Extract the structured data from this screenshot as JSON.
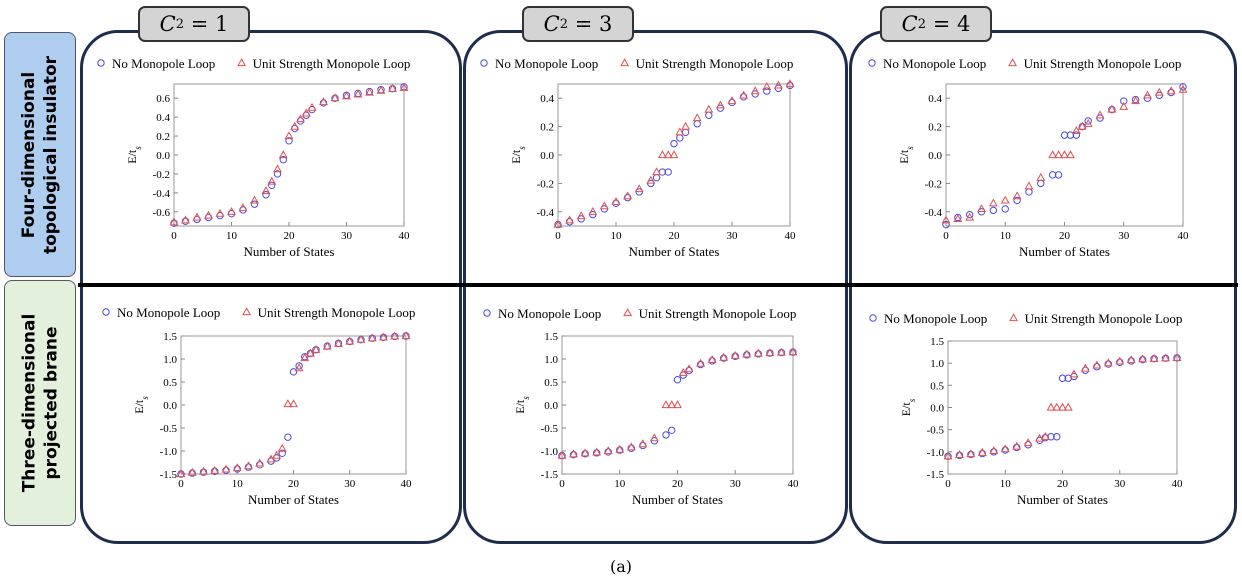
{
  "row_labels": {
    "top": "Four-dimensional\ntopological insulator",
    "bottom": "Three-dimensional\nprojected brane"
  },
  "column_headers": [
    {
      "symbol": "C",
      "subscript": "2",
      "value": "= 1"
    },
    {
      "symbol": "C",
      "subscript": "2",
      "value": "= 3"
    },
    {
      "symbol": "C",
      "subscript": "2",
      "value": "= 4"
    }
  ],
  "caption": "(a)",
  "colors": {
    "series_a": "#4a4ae0",
    "series_b": "#e05050",
    "panel_border": "#1f2d4d",
    "row_top_bg": "#aecdef",
    "row_bottom_bg": "#e3f1dc",
    "header_bg": "#d4d4d4"
  },
  "chart_data": [
    {
      "type": "scatter",
      "xlabel": "Number of States",
      "ylabel": "E/t_s",
      "xlim": [
        0,
        40
      ],
      "ylim": [
        -0.75,
        0.75
      ],
      "xticks": [
        "0",
        "10",
        "20",
        "30",
        "40"
      ],
      "yticks": [
        "-0.6",
        "-0.4",
        "-0.2",
        "0.0",
        "0.2",
        "0.4",
        "0.6"
      ],
      "legend_position": "top",
      "series": [
        {
          "name": "No Monopole Loop",
          "marker": "circle",
          "x": [
            0,
            2,
            4,
            6,
            8,
            10,
            12,
            14,
            16,
            17,
            18,
            19,
            20,
            21,
            22,
            23,
            24,
            26,
            28,
            30,
            32,
            34,
            36,
            38,
            40
          ],
          "values": [
            -0.72,
            -0.7,
            -0.68,
            -0.66,
            -0.64,
            -0.62,
            -0.58,
            -0.52,
            -0.42,
            -0.32,
            -0.2,
            -0.05,
            0.15,
            0.28,
            0.36,
            0.42,
            0.48,
            0.55,
            0.6,
            0.63,
            0.65,
            0.67,
            0.69,
            0.7,
            0.72
          ]
        },
        {
          "name": "Unit Strength Monopole Loop",
          "marker": "triangle",
          "x": [
            0,
            2,
            4,
            6,
            8,
            10,
            12,
            14,
            16,
            17,
            18,
            19,
            20,
            21,
            22,
            23,
            24,
            26,
            28,
            30,
            32,
            34,
            36,
            38,
            40
          ],
          "values": [
            -0.71,
            -0.69,
            -0.66,
            -0.64,
            -0.62,
            -0.6,
            -0.56,
            -0.48,
            -0.38,
            -0.28,
            -0.15,
            0.0,
            0.2,
            0.3,
            0.38,
            0.44,
            0.5,
            0.56,
            0.6,
            0.62,
            0.64,
            0.66,
            0.68,
            0.7,
            0.71
          ]
        }
      ]
    },
    {
      "type": "scatter",
      "xlabel": "Number of States",
      "ylabel": "E/t_s",
      "xlim": [
        0,
        40
      ],
      "ylim": [
        -0.5,
        0.5
      ],
      "xticks": [
        "0",
        "10",
        "20",
        "30",
        "40"
      ],
      "yticks": [
        "-0.4",
        "-0.2",
        "0.0",
        "0.2",
        "0.4"
      ],
      "legend_position": "top",
      "series": [
        {
          "name": "No Monopole Loop",
          "marker": "circle",
          "x": [
            0,
            2,
            4,
            6,
            8,
            10,
            12,
            14,
            16,
            17,
            18,
            19,
            20,
            21,
            22,
            24,
            26,
            28,
            30,
            32,
            34,
            36,
            38,
            40
          ],
          "values": [
            -0.49,
            -0.47,
            -0.45,
            -0.42,
            -0.38,
            -0.34,
            -0.3,
            -0.26,
            -0.2,
            -0.16,
            -0.12,
            -0.12,
            0.08,
            0.12,
            0.16,
            0.22,
            0.28,
            0.33,
            0.37,
            0.41,
            0.43,
            0.45,
            0.47,
            0.49
          ]
        },
        {
          "name": "Unit Strength Monopole Loop",
          "marker": "triangle",
          "x": [
            0,
            2,
            4,
            6,
            8,
            10,
            12,
            14,
            16,
            17,
            18,
            19,
            20,
            21,
            22,
            24,
            26,
            28,
            30,
            32,
            34,
            36,
            38,
            40
          ],
          "values": [
            -0.49,
            -0.46,
            -0.43,
            -0.4,
            -0.36,
            -0.33,
            -0.29,
            -0.24,
            -0.18,
            -0.12,
            0.0,
            0.0,
            0.0,
            0.16,
            0.2,
            0.26,
            0.32,
            0.35,
            0.38,
            0.42,
            0.45,
            0.48,
            0.49,
            0.5
          ]
        }
      ]
    },
    {
      "type": "scatter",
      "xlabel": "Number of States",
      "ylabel": "E/t_s",
      "xlim": [
        0,
        40
      ],
      "ylim": [
        -0.5,
        0.5
      ],
      "xticks": [
        "0",
        "10",
        "20",
        "30",
        "40"
      ],
      "yticks": [
        "-0.4",
        "-0.2",
        "0.0",
        "0.2",
        "0.4"
      ],
      "legend_position": "top",
      "series": [
        {
          "name": "No Monopole Loop",
          "marker": "circle",
          "x": [
            0,
            2,
            4,
            6,
            8,
            10,
            12,
            14,
            16,
            18,
            19,
            20,
            21,
            22,
            23,
            24,
            26,
            28,
            30,
            32,
            34,
            36,
            38,
            40
          ],
          "values": [
            -0.49,
            -0.44,
            -0.42,
            -0.4,
            -0.39,
            -0.38,
            -0.32,
            -0.26,
            -0.2,
            -0.14,
            -0.14,
            0.14,
            0.14,
            0.14,
            0.2,
            0.24,
            0.26,
            0.32,
            0.38,
            0.39,
            0.4,
            0.42,
            0.44,
            0.48
          ]
        },
        {
          "name": "Unit Strength Monopole Loop",
          "marker": "triangle",
          "x": [
            0,
            2,
            4,
            6,
            8,
            10,
            12,
            14,
            16,
            18,
            19,
            20,
            21,
            22,
            23,
            24,
            26,
            28,
            30,
            32,
            34,
            36,
            38,
            40
          ],
          "values": [
            -0.46,
            -0.45,
            -0.44,
            -0.38,
            -0.34,
            -0.32,
            -0.29,
            -0.22,
            -0.16,
            0.0,
            0.0,
            0.0,
            0.0,
            0.17,
            0.2,
            0.22,
            0.28,
            0.32,
            0.34,
            0.38,
            0.42,
            0.44,
            0.45,
            0.46
          ]
        }
      ]
    },
    {
      "type": "scatter",
      "xlabel": "Number of States",
      "ylabel": "E/t_s",
      "xlim": [
        0,
        40
      ],
      "ylim": [
        -1.5,
        1.5
      ],
      "xticks": [
        "0",
        "10",
        "20",
        "30",
        "40"
      ],
      "yticks": [
        "-1.5",
        "-1.0",
        "-0.5",
        "0.0",
        "0.5",
        "1.0",
        "1.5"
      ],
      "legend_position": "top",
      "series": [
        {
          "name": "No Monopole Loop",
          "marker": "circle",
          "x": [
            0,
            2,
            4,
            6,
            8,
            10,
            12,
            14,
            16,
            17,
            18,
            19,
            20,
            21,
            22,
            23,
            24,
            26,
            28,
            30,
            32,
            34,
            36,
            38,
            40
          ],
          "values": [
            -1.5,
            -1.48,
            -1.46,
            -1.44,
            -1.42,
            -1.39,
            -1.35,
            -1.3,
            -1.22,
            -1.15,
            -1.05,
            -0.7,
            0.72,
            0.85,
            1.05,
            1.12,
            1.2,
            1.28,
            1.34,
            1.38,
            1.42,
            1.45,
            1.47,
            1.49,
            1.5
          ]
        },
        {
          "name": "Unit Strength Monopole Loop",
          "marker": "triangle",
          "x": [
            0,
            2,
            4,
            6,
            8,
            10,
            12,
            14,
            16,
            17,
            18,
            19,
            20,
            21,
            22,
            23,
            24,
            26,
            28,
            30,
            32,
            34,
            36,
            38,
            40
          ],
          "values": [
            -1.5,
            -1.47,
            -1.45,
            -1.43,
            -1.4,
            -1.37,
            -1.33,
            -1.27,
            -1.18,
            -1.1,
            -0.95,
            0.02,
            0.02,
            0.8,
            1.02,
            1.12,
            1.2,
            1.27,
            1.33,
            1.38,
            1.42,
            1.45,
            1.47,
            1.49,
            1.5
          ]
        }
      ]
    },
    {
      "type": "scatter",
      "xlabel": "Number of States",
      "ylabel": "E/t_s",
      "xlim": [
        0,
        40
      ],
      "ylim": [
        -1.5,
        1.5
      ],
      "xticks": [
        "0",
        "10",
        "20",
        "30",
        "40"
      ],
      "yticks": [
        "-1.5",
        "-1.0",
        "-0.5",
        "0.0",
        "0.5",
        "1.0",
        "1.5"
      ],
      "legend_position": "top",
      "series": [
        {
          "name": "No Monopole Loop",
          "marker": "circle",
          "x": [
            0,
            2,
            4,
            6,
            8,
            10,
            12,
            14,
            16,
            18,
            19,
            20,
            21,
            22,
            24,
            26,
            28,
            30,
            32,
            34,
            36,
            38,
            40
          ],
          "values": [
            -1.1,
            -1.08,
            -1.06,
            -1.04,
            -1.02,
            -0.98,
            -0.94,
            -0.88,
            -0.78,
            -0.65,
            -0.55,
            0.55,
            0.65,
            0.75,
            0.88,
            0.96,
            1.02,
            1.06,
            1.09,
            1.11,
            1.13,
            1.14,
            1.15
          ]
        },
        {
          "name": "Unit Strength Monopole Loop",
          "marker": "triangle",
          "x": [
            0,
            2,
            4,
            6,
            8,
            10,
            12,
            14,
            16,
            18,
            19,
            20,
            21,
            22,
            24,
            26,
            28,
            30,
            32,
            34,
            36,
            38,
            40
          ],
          "values": [
            -1.1,
            -1.07,
            -1.05,
            -1.03,
            -1.0,
            -0.97,
            -0.92,
            -0.85,
            -0.72,
            0.0,
            0.0,
            0.0,
            0.7,
            0.78,
            0.9,
            0.98,
            1.03,
            1.07,
            1.1,
            1.12,
            1.13,
            1.14,
            1.15
          ]
        }
      ]
    },
    {
      "type": "scatter",
      "xlabel": "Number of States",
      "ylabel": "E/t_s",
      "xlim": [
        0,
        40
      ],
      "ylim": [
        -1.5,
        1.5
      ],
      "xticks": [
        "0",
        "10",
        "20",
        "30",
        "40"
      ],
      "yticks": [
        "-1.5",
        "-1.0",
        "-0.5",
        "0.0",
        "0.5",
        "1.0",
        "1.5"
      ],
      "legend_position": "top",
      "series": [
        {
          "name": "No Monopole Loop",
          "marker": "circle",
          "x": [
            0,
            2,
            4,
            6,
            8,
            10,
            12,
            14,
            16,
            17,
            18,
            19,
            20,
            21,
            22,
            24,
            26,
            28,
            30,
            32,
            34,
            36,
            38,
            40
          ],
          "values": [
            -1.1,
            -1.08,
            -1.06,
            -1.04,
            -1.0,
            -0.96,
            -0.9,
            -0.84,
            -0.74,
            -0.68,
            -0.66,
            -0.66,
            0.66,
            0.66,
            0.7,
            0.84,
            0.92,
            0.98,
            1.02,
            1.05,
            1.08,
            1.1,
            1.11,
            1.12
          ]
        },
        {
          "name": "Unit Strength Monopole Loop",
          "marker": "triangle",
          "x": [
            0,
            2,
            4,
            6,
            8,
            10,
            12,
            14,
            16,
            17,
            18,
            19,
            20,
            21,
            22,
            24,
            26,
            28,
            30,
            32,
            34,
            36,
            38,
            40
          ],
          "values": [
            -1.1,
            -1.07,
            -1.05,
            -1.02,
            -0.98,
            -0.94,
            -0.88,
            -0.8,
            -0.7,
            -0.66,
            0.0,
            0.0,
            0.0,
            0.0,
            0.75,
            0.88,
            0.95,
            1.0,
            1.04,
            1.07,
            1.09,
            1.1,
            1.11,
            1.12
          ]
        }
      ]
    }
  ]
}
